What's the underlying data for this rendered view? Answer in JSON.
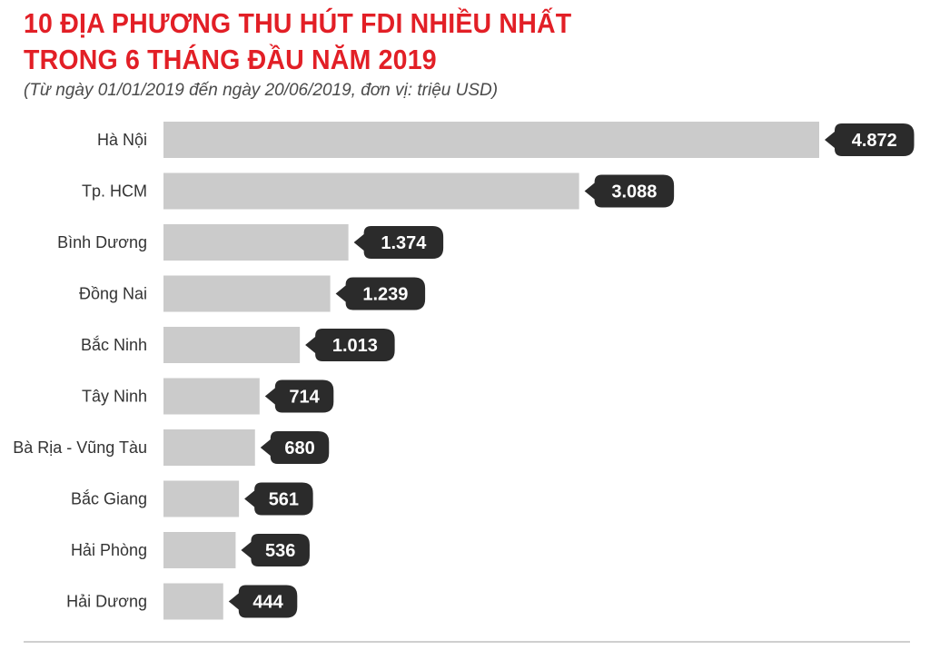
{
  "header": {
    "title_line1": "10 ĐỊA PHƯƠNG THU HÚT FDI NHIỀU NHẤT",
    "title_line2": "TRONG 6 THÁNG ĐẦU NĂM 2019",
    "subtitle": "(Từ ngày 01/01/2019 đến ngày 20/06/2019, đơn vị: triệu USD)"
  },
  "colors": {
    "title": "#e21f26",
    "bar": "#cbcbcb",
    "value_badge": "#2b2b2b"
  },
  "chart_data": {
    "type": "bar",
    "orientation": "horizontal",
    "categories": [
      "Hà Nội",
      "Tp. HCM",
      "Bình Dương",
      "Đồng Nai",
      "Bắc Ninh",
      "Tây Ninh",
      "Bà Rịa - Vũng Tàu",
      "Bắc Giang",
      "Hải Phòng",
      "Hải Dương"
    ],
    "values": [
      4872,
      3088,
      1374,
      1239,
      1013,
      714,
      680,
      561,
      536,
      444
    ],
    "value_labels": [
      "4.872",
      "3.088",
      "1.374",
      "1.239",
      "1.013",
      "714",
      "680",
      "561",
      "536",
      "444"
    ],
    "title": "10 ĐỊA PHƯƠNG THU HÚT FDI NHIỀU NHẤT TRONG 6 THÁNG ĐẦU NĂM 2019",
    "xlabel": "",
    "ylabel": "",
    "xlim": [
      0,
      4872
    ],
    "grid": false,
    "legend": "none"
  }
}
